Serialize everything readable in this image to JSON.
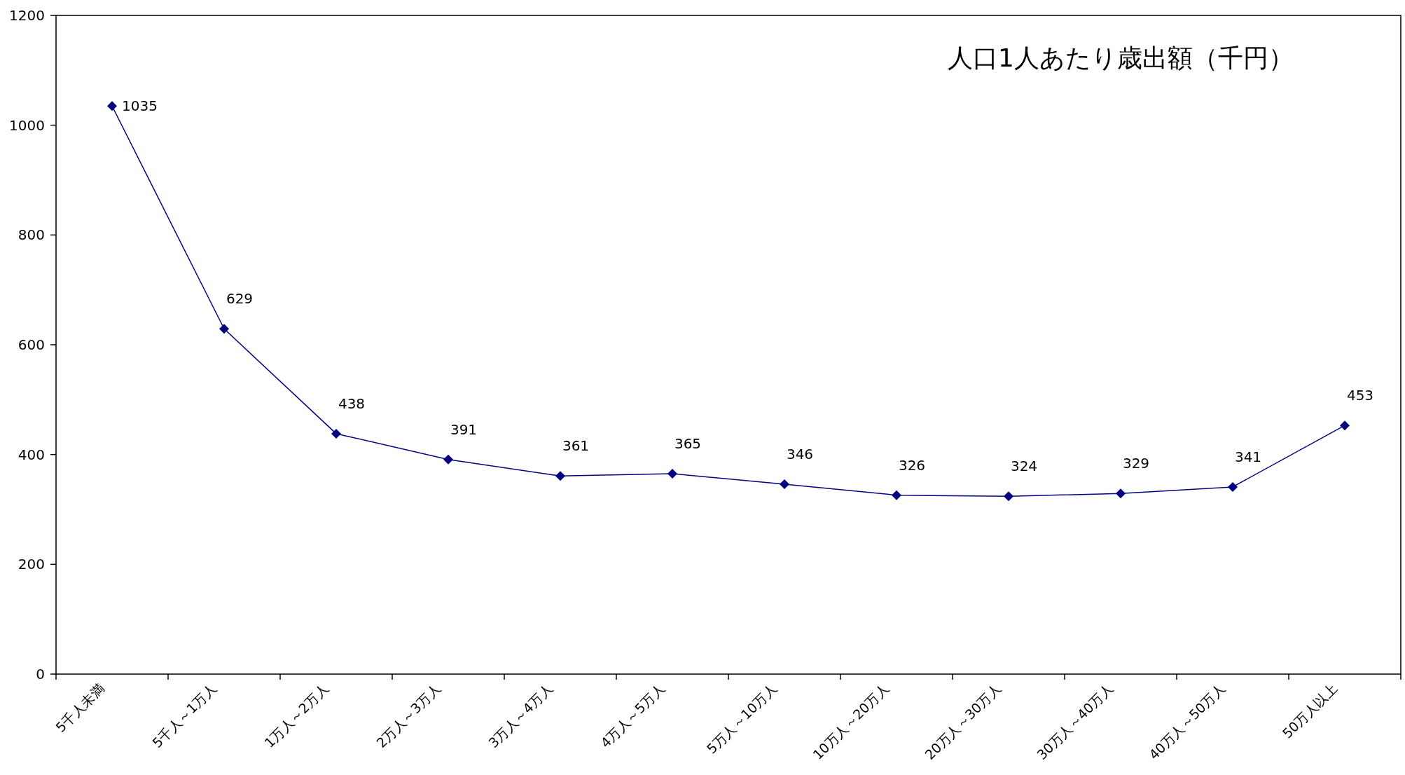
{
  "chart_data": {
    "type": "line",
    "title": "人口1人あたり歳出額（千円）",
    "categories": [
      "5千人未満",
      "5千人～1万人",
      "1万人～2万人",
      "2万人～3万人",
      "3万人～4万人",
      "4万人～5万人",
      "5万人～10万人",
      "10万人～20万人",
      "20万人～30万人",
      "30万人～40万人",
      "40万人～50万人",
      "50万人以上"
    ],
    "series": [
      {
        "color": "#000080",
        "values": [
          1035,
          629,
          438,
          391,
          361,
          365,
          346,
          326,
          324,
          329,
          341,
          453
        ]
      }
    ],
    "ylim": [
      0,
      1200
    ],
    "yticks": [
      0,
      200,
      400,
      600,
      800,
      1000,
      1200
    ],
    "marker": "diamond",
    "line_style": "solid",
    "data_labels": true
  }
}
